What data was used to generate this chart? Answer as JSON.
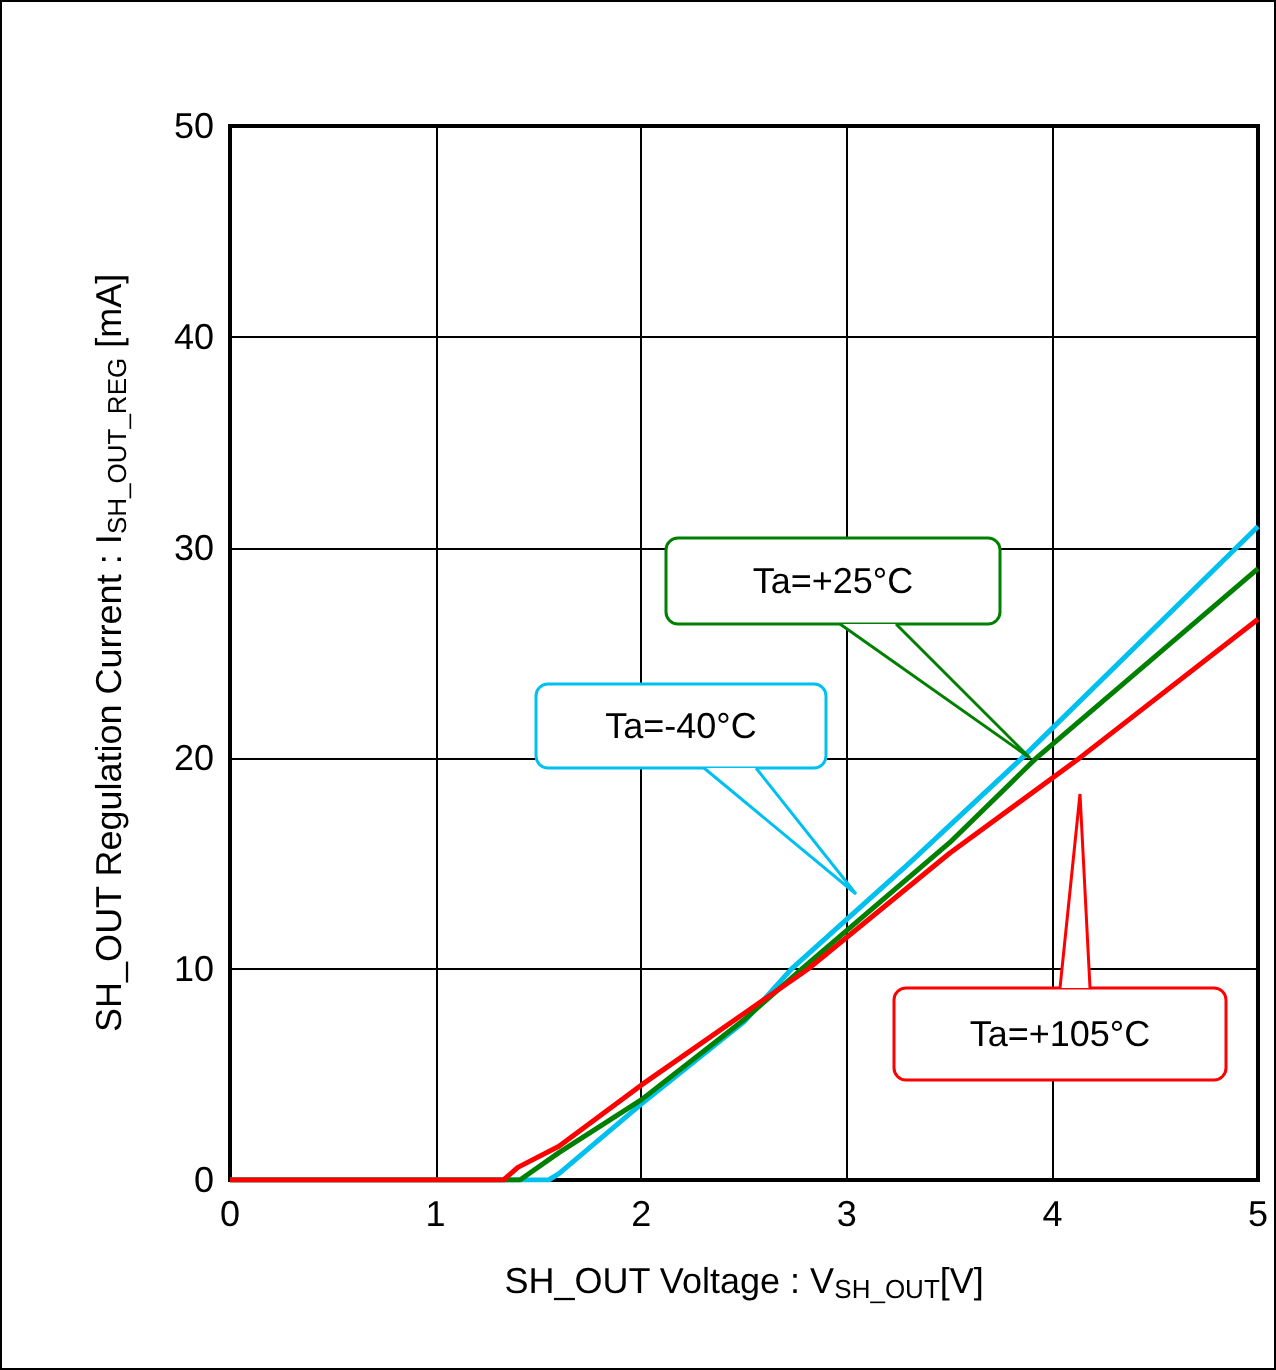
{
  "chart_data": {
    "type": "line",
    "xlabel": "SH_OUT Voltage : V$_{SH_OUT}$[V]",
    "ylabel": "SH_OUT Regulation Current : I$_{SH_OUT_REG}$ [mA]",
    "xlim": [
      0,
      5
    ],
    "xticks": [
      0,
      1,
      2,
      3,
      4,
      5
    ],
    "ylim": [
      0,
      50
    ],
    "yticks": [
      0,
      10,
      20,
      30,
      40,
      50
    ],
    "grid": true,
    "marker": "none",
    "line_style": "solid",
    "series": [
      {
        "color": "#00c0f0",
        "x": [
          0,
          1.55,
          1.6,
          2,
          2.5,
          2.73,
          3.3,
          3.85,
          5
        ],
        "values": [
          0,
          0,
          0.3,
          3.6,
          7.5,
          10,
          15,
          20,
          31
        ]
      },
      {
        "color": "#008000",
        "x": [
          0,
          1.41,
          1.6,
          2,
          2.5,
          2.78,
          3.5,
          3.92,
          5
        ],
        "values": [
          0,
          0,
          1.3,
          3.8,
          7.6,
          10,
          16,
          20,
          29
        ]
      },
      {
        "color": "#ff0000",
        "x": [
          0,
          1.33,
          1.4,
          1.6,
          2,
          2.5,
          2.81,
          3.5,
          4.13,
          5
        ],
        "values": [
          0,
          0,
          0.6,
          1.6,
          4.5,
          7.9,
          10,
          15.5,
          20,
          26.6
        ]
      }
    ],
    "annotations": [
      "Ta=-40°C",
      "Ta=+25°C",
      "Ta=+105°C"
    ]
  }
}
